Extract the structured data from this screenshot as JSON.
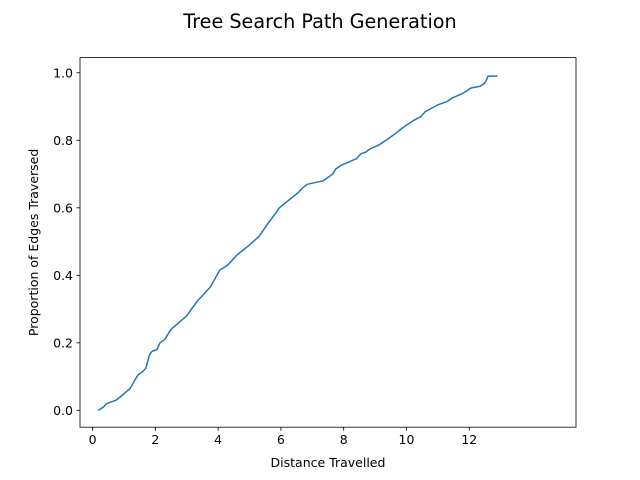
{
  "chart_data": {
    "type": "line",
    "title": "Tree Search Path Generation",
    "xlabel": "Distance Travelled",
    "ylabel": "Proportion of Edges Traversed",
    "xlim": [
      -0.4,
      15.4
    ],
    "ylim": [
      -0.05,
      1.045
    ],
    "xticks": [
      0,
      2,
      4,
      6,
      8,
      10,
      12
    ],
    "xtick_labels": [
      "0",
      "2",
      "4",
      "6",
      "8",
      "10",
      "12"
    ],
    "yticks": [
      0.0,
      0.2,
      0.4,
      0.6,
      0.8,
      1.0
    ],
    "ytick_labels": [
      "0.0",
      "0.2",
      "0.4",
      "0.6",
      "0.8",
      "1.0"
    ],
    "grid": false,
    "series": [
      {
        "color": "#1f77b4",
        "x": [
          0.18,
          0.35,
          0.45,
          0.75,
          0.95,
          1.2,
          1.35,
          1.45,
          1.6,
          1.7,
          1.8,
          1.85,
          1.9,
          2.05,
          2.15,
          2.3,
          2.5,
          2.75,
          3.0,
          3.15,
          3.35,
          3.55,
          3.75,
          3.9,
          4.05,
          4.3,
          4.5,
          4.6,
          4.8,
          5.0,
          5.3,
          5.45,
          5.6,
          5.8,
          5.95,
          6.15,
          6.35,
          6.55,
          6.7,
          6.85,
          7.35,
          7.5,
          7.65,
          7.75,
          7.9,
          8.15,
          8.4,
          8.55,
          8.7,
          8.85,
          9.1,
          9.35,
          9.5,
          9.65,
          9.85,
          10.0,
          10.25,
          10.45,
          10.6,
          10.8,
          11.0,
          11.3,
          11.45,
          11.7,
          11.9,
          12.05,
          12.35,
          12.5,
          12.6,
          12.9
        ],
        "values": [
          0.0,
          0.01,
          0.02,
          0.03,
          0.045,
          0.065,
          0.09,
          0.105,
          0.115,
          0.125,
          0.16,
          0.17,
          0.175,
          0.18,
          0.2,
          0.21,
          0.24,
          0.26,
          0.28,
          0.3,
          0.325,
          0.345,
          0.365,
          0.39,
          0.415,
          0.43,
          0.45,
          0.46,
          0.475,
          0.49,
          0.515,
          0.535,
          0.555,
          0.58,
          0.6,
          0.615,
          0.63,
          0.645,
          0.66,
          0.67,
          0.68,
          0.69,
          0.7,
          0.715,
          0.725,
          0.735,
          0.745,
          0.76,
          0.765,
          0.775,
          0.785,
          0.8,
          0.81,
          0.82,
          0.835,
          0.845,
          0.86,
          0.87,
          0.885,
          0.895,
          0.905,
          0.915,
          0.925,
          0.935,
          0.945,
          0.955,
          0.96,
          0.97,
          0.99,
          0.99
        ]
      }
    ]
  }
}
